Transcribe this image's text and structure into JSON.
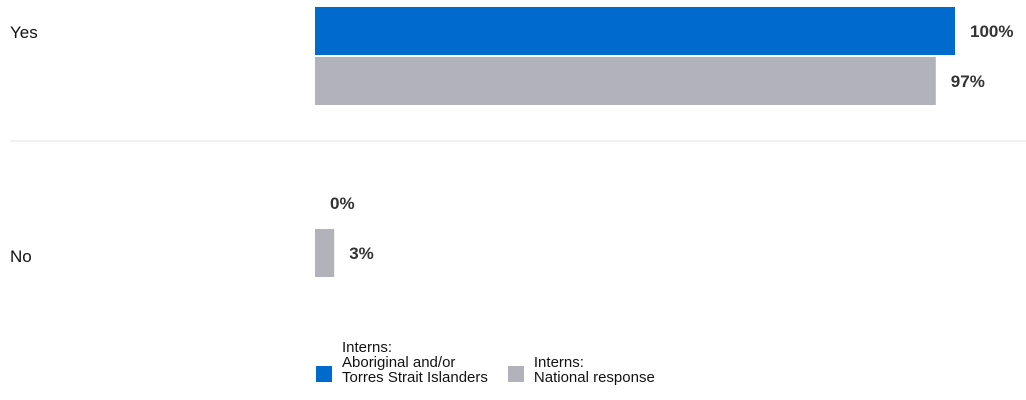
{
  "chart_data": {
    "type": "bar",
    "orientation": "horizontal",
    "categories": [
      "Yes",
      "No"
    ],
    "series": [
      {
        "name": "Interns: Aboriginal and/or Torres Strait Islanders",
        "values": [
          100,
          0
        ],
        "labels": [
          "100%",
          "0%"
        ],
        "color": "#006ACD"
      },
      {
        "name": "Interns: National response",
        "values": [
          97,
          3
        ],
        "labels": [
          "97%",
          "3%"
        ],
        "color": "#B2B2BB"
      }
    ],
    "xlim": [
      0,
      100
    ],
    "unit": "%",
    "grid": false,
    "legend_position": "bottom"
  },
  "legend": {
    "items": [
      {
        "lines": [
          "Interns:",
          "Aboriginal and/or",
          "Torres Strait Islanders"
        ],
        "color": "#006ACD"
      },
      {
        "lines": [
          "Interns:",
          "National response"
        ],
        "color": "#B2B2BB"
      }
    ]
  },
  "colors": {
    "divider": "#E3E3E3",
    "text": "#111111",
    "value_text": "#333333"
  }
}
